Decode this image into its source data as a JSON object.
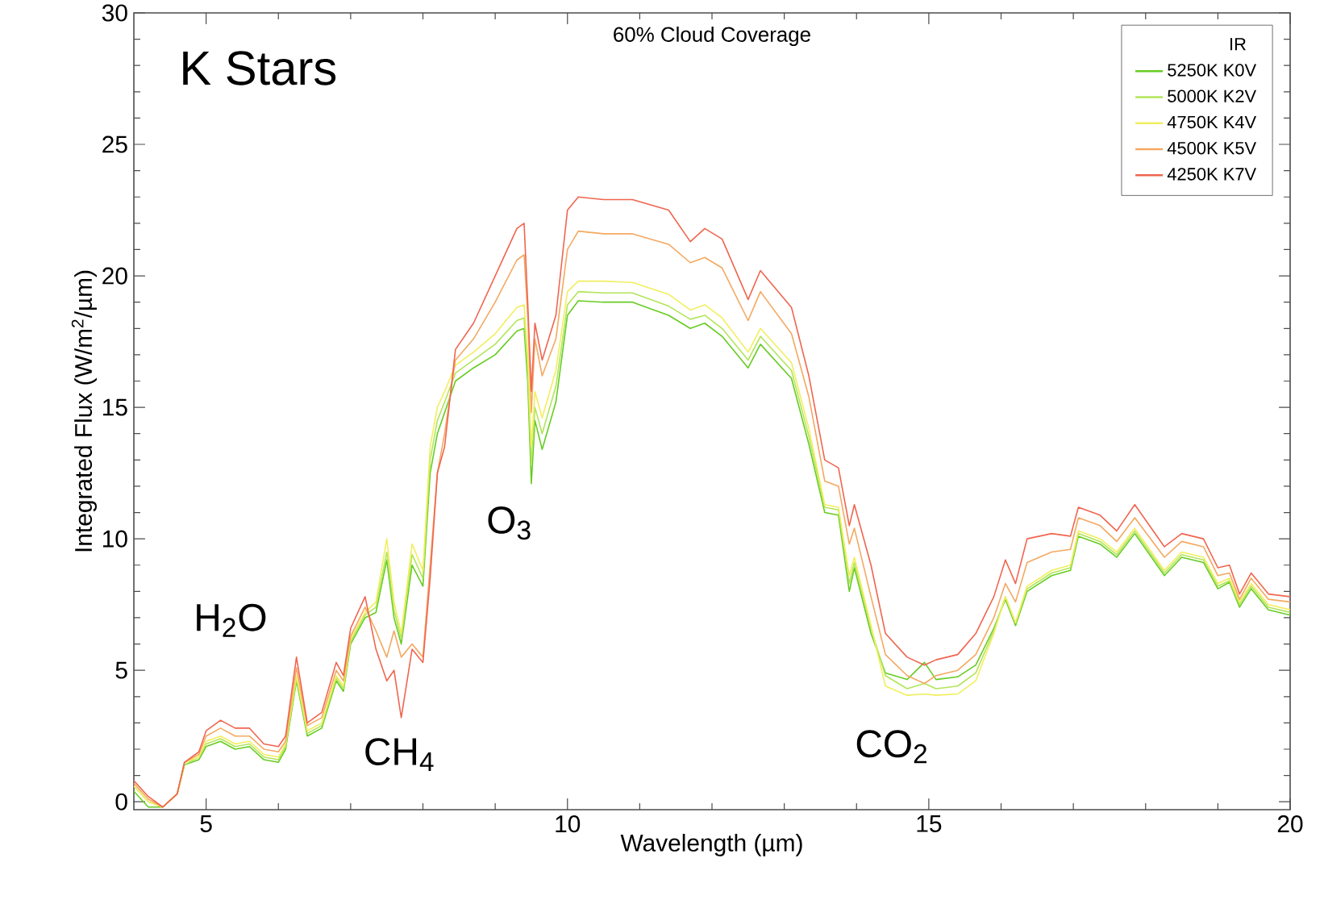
{
  "chart_data": {
    "type": "line",
    "title": "60% Cloud Coverage",
    "xlabel": "Wavelength (µm)",
    "ylabel": "Integrated Flux (W/m$^{2}$/µm)",
    "legend_title": "IR",
    "legend": "top right",
    "annotations": [
      "K Stars",
      "H$_{2}$O",
      "CH$_{4}$",
      "O$_{3}$",
      "CO$_{2}$"
    ],
    "xlim": [
      4,
      20
    ],
    "xticks": [
      5,
      10,
      15,
      20
    ],
    "ylim": [
      -0.3,
      30
    ],
    "yticks": [
      0,
      5,
      10,
      15,
      20,
      25,
      30
    ],
    "x": [
      4.0,
      4.2,
      4.4,
      4.6,
      4.7,
      4.9,
      5.0,
      5.2,
      5.4,
      5.6,
      5.8,
      6.0,
      6.1,
      6.25,
      6.4,
      6.6,
      6.8,
      6.9,
      7.0,
      7.2,
      7.35,
      7.5,
      7.6,
      7.7,
      7.85,
      8.0,
      8.1,
      8.2,
      8.3,
      8.45,
      8.7,
      9.0,
      9.3,
      9.4,
      9.45,
      9.5,
      9.55,
      9.65,
      9.84,
      10.0,
      10.15,
      10.5,
      10.9,
      11.4,
      11.7,
      11.9,
      12.14,
      12.5,
      12.67,
      13.1,
      13.34,
      13.56,
      13.75,
      13.9,
      13.97,
      14.2,
      14.4,
      14.7,
      14.94,
      15.1,
      15.4,
      15.65,
      15.9,
      16.06,
      16.2,
      16.36,
      16.7,
      16.96,
      17.07,
      17.37,
      17.6,
      17.85,
      18.26,
      18.5,
      18.8,
      19.0,
      19.16,
      19.3,
      19.46,
      19.7,
      20.0
    ],
    "series": [
      {
        "name": "5250K K0V",
        "color": "#66cc22",
        "values": [
          0.4,
          -0.2,
          -0.2,
          0.3,
          1.4,
          1.6,
          2.1,
          2.3,
          2.0,
          2.1,
          1.6,
          1.5,
          2.0,
          4.6,
          2.5,
          2.8,
          4.6,
          4.2,
          6.0,
          7.0,
          7.2,
          9.2,
          7.0,
          6.0,
          9.0,
          8.2,
          12.5,
          14.0,
          14.8,
          16.0,
          16.5,
          17.0,
          17.9,
          18.0,
          16.0,
          12.1,
          14.5,
          13.4,
          15.2,
          18.5,
          19.05,
          19.0,
          19.0,
          18.5,
          18.0,
          18.2,
          17.7,
          16.5,
          17.4,
          16.1,
          13.6,
          11.0,
          10.9,
          8.0,
          8.9,
          6.4,
          4.9,
          4.65,
          5.3,
          4.65,
          4.75,
          5.2,
          6.6,
          7.7,
          6.7,
          8.0,
          8.6,
          8.8,
          10.1,
          9.8,
          9.3,
          10.2,
          8.6,
          9.3,
          9.1,
          8.1,
          8.35,
          7.4,
          8.1,
          7.3,
          7.1
        ]
      },
      {
        "name": "5000K K2V",
        "color": "#b2e55a",
        "values": [
          0.6,
          0.0,
          -0.2,
          0.3,
          1.4,
          1.7,
          2.2,
          2.4,
          2.1,
          2.2,
          1.7,
          1.6,
          2.1,
          4.7,
          2.6,
          2.9,
          4.7,
          4.3,
          6.1,
          7.1,
          7.4,
          9.5,
          7.3,
          6.2,
          9.4,
          8.5,
          13.0,
          14.5,
          15.2,
          16.3,
          16.8,
          17.4,
          18.3,
          18.4,
          16.5,
          12.8,
          15.0,
          14.0,
          15.8,
          18.9,
          19.4,
          19.35,
          19.35,
          18.85,
          18.35,
          18.5,
          18.0,
          16.8,
          17.7,
          16.4,
          13.9,
          11.2,
          11.1,
          8.3,
          9.1,
          6.6,
          4.8,
          4.3,
          4.5,
          4.3,
          4.4,
          4.9,
          6.5,
          7.8,
          6.8,
          8.1,
          8.7,
          8.9,
          10.2,
          9.9,
          9.4,
          10.3,
          8.7,
          9.4,
          9.2,
          8.2,
          8.4,
          7.5,
          8.2,
          7.4,
          7.2
        ]
      },
      {
        "name": "4750K K4V",
        "color": "#f2ee5e",
        "values": [
          0.6,
          0.0,
          -0.2,
          0.3,
          1.5,
          1.7,
          2.3,
          2.5,
          2.2,
          2.3,
          1.8,
          1.7,
          2.2,
          4.8,
          2.7,
          3.0,
          4.8,
          4.4,
          6.2,
          7.2,
          7.6,
          10.0,
          7.6,
          6.4,
          9.8,
          8.8,
          13.5,
          15.0,
          15.6,
          16.6,
          17.1,
          17.8,
          18.8,
          18.9,
          17.0,
          13.5,
          15.6,
          14.6,
          16.4,
          19.4,
          19.8,
          19.8,
          19.75,
          19.3,
          18.7,
          18.9,
          18.4,
          17.1,
          18.0,
          16.7,
          14.2,
          11.3,
          11.2,
          8.6,
          9.3,
          6.7,
          4.4,
          4.05,
          4.1,
          4.05,
          4.1,
          4.6,
          6.4,
          7.8,
          6.8,
          8.2,
          8.8,
          9.0,
          10.3,
          10.0,
          9.5,
          10.4,
          8.8,
          9.5,
          9.3,
          8.3,
          8.5,
          7.6,
          8.3,
          7.5,
          7.3
        ]
      },
      {
        "name": "4500K K5V",
        "color": "#f4a860",
        "values": [
          0.7,
          0.1,
          -0.2,
          0.3,
          1.5,
          1.8,
          2.5,
          2.8,
          2.5,
          2.5,
          2.0,
          1.9,
          2.3,
          5.1,
          2.9,
          3.2,
          5.0,
          4.6,
          6.3,
          7.4,
          6.5,
          5.5,
          6.5,
          5.5,
          6.0,
          5.5,
          9.0,
          12.5,
          14.0,
          16.8,
          17.6,
          19.0,
          20.6,
          20.8,
          18.5,
          14.8,
          17.6,
          16.2,
          17.6,
          21.0,
          21.7,
          21.6,
          21.6,
          21.2,
          20.5,
          20.7,
          20.3,
          18.3,
          19.4,
          17.8,
          15.4,
          12.2,
          12.0,
          9.8,
          10.4,
          7.8,
          5.6,
          4.8,
          4.5,
          4.8,
          5.0,
          5.6,
          7.0,
          8.3,
          7.6,
          9.1,
          9.5,
          9.6,
          10.8,
          10.5,
          9.9,
          10.8,
          9.3,
          9.9,
          9.7,
          8.6,
          8.7,
          7.7,
          8.5,
          7.7,
          7.6
        ]
      },
      {
        "name": "4250K K7V",
        "color": "#f0654f",
        "values": [
          0.8,
          0.2,
          -0.2,
          0.3,
          1.5,
          1.9,
          2.7,
          3.1,
          2.8,
          2.8,
          2.2,
          2.1,
          2.5,
          5.5,
          3.0,
          3.4,
          5.3,
          4.8,
          6.6,
          7.8,
          5.8,
          4.6,
          5.0,
          3.2,
          5.8,
          5.3,
          8.5,
          12.5,
          13.5,
          17.2,
          18.2,
          20.0,
          21.8,
          22.0,
          19.0,
          15.6,
          18.2,
          16.8,
          18.5,
          22.5,
          23.0,
          22.9,
          22.9,
          22.5,
          21.3,
          21.8,
          21.4,
          19.1,
          20.2,
          18.8,
          16.2,
          13.0,
          12.7,
          10.5,
          11.3,
          9.0,
          6.4,
          5.5,
          5.2,
          5.4,
          5.6,
          6.4,
          7.8,
          9.2,
          8.3,
          10.0,
          10.2,
          10.1,
          11.2,
          10.9,
          10.3,
          11.3,
          9.7,
          10.2,
          10.0,
          8.9,
          9.0,
          7.9,
          8.7,
          7.9,
          7.8
        ]
      }
    ]
  }
}
